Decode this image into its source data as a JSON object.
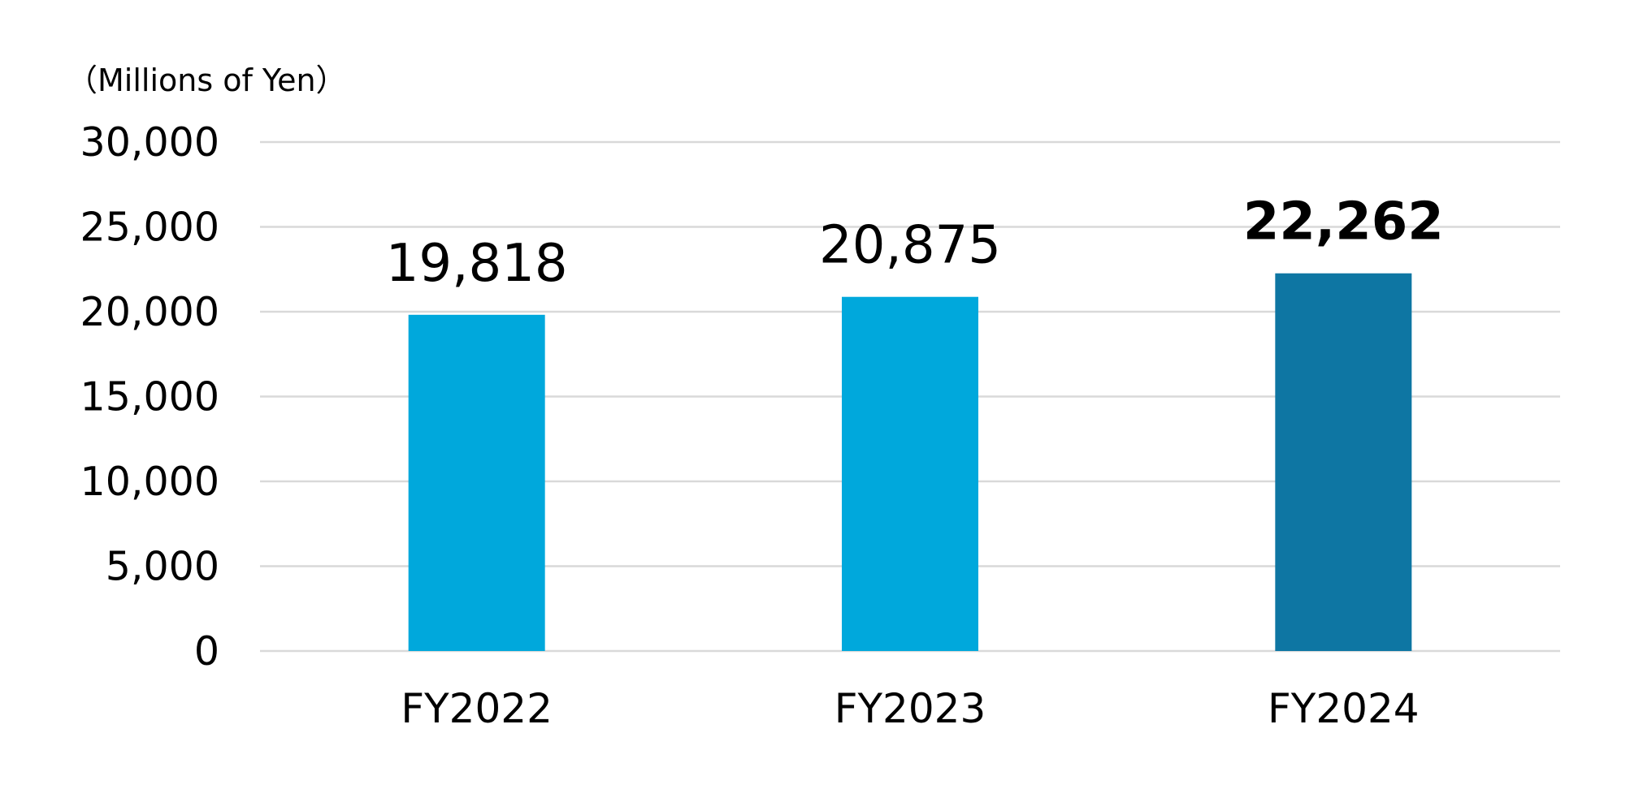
{
  "chart_data": {
    "type": "bar",
    "unit_label": "（Millions of Yen）",
    "categories": [
      "FY2022",
      "FY2023",
      "FY2024"
    ],
    "values": [
      19818,
      20875,
      22262
    ],
    "data_labels": [
      "19,818",
      "20,875",
      "22,262"
    ],
    "highlight_index": 2,
    "bar_colors": [
      "#00a8dc",
      "#00a8dc",
      "#0e76a3"
    ],
    "ylim": [
      0,
      30000
    ],
    "yticks": [
      0,
      5000,
      10000,
      15000,
      20000,
      25000,
      30000
    ],
    "ytick_labels": [
      "0",
      "5,000",
      "10,000",
      "15,000",
      "20,000",
      "25,000",
      "30,000"
    ],
    "grid": true,
    "gridline_color": "#d9d9d9",
    "legend": "none"
  }
}
